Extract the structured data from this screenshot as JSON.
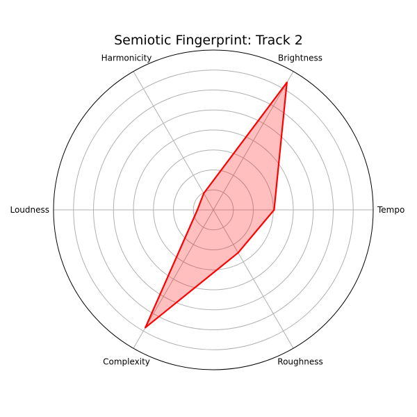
{
  "chart_data": {
    "type": "radar",
    "title": "Semiotic Fingerprint: Track 2",
    "categories": [
      "Tempo",
      "Brightness",
      "Harmonicity",
      "Loudness",
      "Complexity",
      "Roughness"
    ],
    "values": [
      0.38,
      0.92,
      0.12,
      0.1,
      0.85,
      0.31
    ],
    "rlim": [
      0,
      1
    ],
    "grid": true,
    "series": [
      {
        "values": [
          0.38,
          0.92,
          0.12,
          0.1,
          0.85,
          0.31
        ]
      }
    ],
    "colors": {
      "line": "#ff0000",
      "fill": "#ff0000",
      "grid": "#b0b0b0",
      "frame": "#000000"
    }
  }
}
